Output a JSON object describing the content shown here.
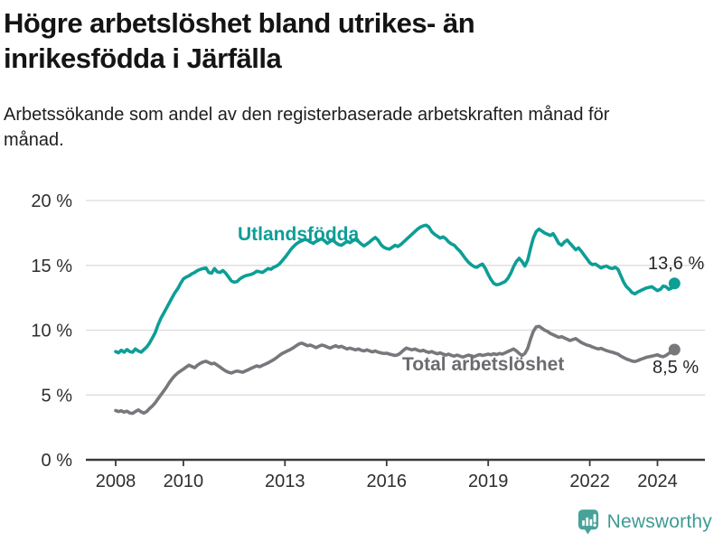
{
  "chart_data": {
    "type": "line",
    "title": "Högre arbetslöshet bland utrikes- än inrikesfödda i Järfälla",
    "subtitle": "Arbetssökande som andel av den registerbaserade arbetskraften månad för månad.",
    "unit": "%",
    "xlim": [
      2007.12,
      2025.4
    ],
    "ylim": [
      0,
      20
    ],
    "grid": "horizontal",
    "legend_position": "inline-labels",
    "x_ticks": [
      2008,
      2010,
      2013,
      2016,
      2019,
      2022,
      2024
    ],
    "x_tick_labels": [
      "2008",
      "2010",
      "2013",
      "2016",
      "2019",
      "2022",
      "2024"
    ],
    "y_ticks": [
      0,
      5,
      10,
      15,
      20
    ],
    "y_tick_labels": [
      "0 %",
      "5 %",
      "10 %",
      "15 %",
      "20 %"
    ],
    "series": [
      {
        "name": "Utlandsfödda",
        "color": "#0d9e96",
        "label_color": "#0d9e96",
        "end_label": "13,6 %",
        "last_value": 13.6,
        "start_year": 2008,
        "points_per_year": 12,
        "values": [
          8.35,
          8.25,
          8.45,
          8.3,
          8.5,
          8.35,
          8.3,
          8.55,
          8.4,
          8.3,
          8.5,
          8.7,
          9.0,
          9.4,
          9.8,
          10.4,
          10.9,
          11.3,
          11.7,
          12.1,
          12.5,
          12.9,
          13.2,
          13.6,
          13.95,
          14.1,
          14.2,
          14.35,
          14.45,
          14.6,
          14.7,
          14.75,
          14.8,
          14.45,
          14.4,
          14.75,
          14.5,
          14.45,
          14.6,
          14.4,
          14.1,
          13.8,
          13.7,
          13.75,
          13.95,
          14.1,
          14.2,
          14.25,
          14.3,
          14.4,
          14.55,
          14.5,
          14.45,
          14.6,
          14.75,
          14.7,
          14.85,
          14.95,
          15.1,
          15.35,
          15.6,
          15.9,
          16.2,
          16.45,
          16.65,
          16.8,
          16.9,
          17.0,
          16.95,
          16.8,
          16.7,
          16.85,
          16.95,
          17.05,
          16.9,
          16.7,
          16.85,
          16.95,
          16.75,
          16.6,
          16.55,
          16.7,
          16.85,
          16.75,
          16.9,
          17.0,
          16.85,
          16.65,
          16.5,
          16.65,
          16.8,
          17.0,
          17.15,
          16.95,
          16.6,
          16.4,
          16.3,
          16.25,
          16.4,
          16.55,
          16.45,
          16.6,
          16.8,
          17.0,
          17.2,
          17.4,
          17.6,
          17.8,
          17.95,
          18.05,
          18.1,
          17.95,
          17.6,
          17.4,
          17.25,
          17.1,
          17.2,
          17.05,
          16.8,
          16.65,
          16.55,
          16.3,
          16.1,
          15.8,
          15.5,
          15.25,
          15.05,
          14.9,
          14.85,
          15.0,
          15.1,
          14.75,
          14.3,
          13.9,
          13.6,
          13.5,
          13.55,
          13.65,
          13.75,
          14.0,
          14.4,
          14.9,
          15.3,
          15.55,
          15.3,
          14.95,
          15.4,
          16.3,
          17.1,
          17.6,
          17.8,
          17.65,
          17.5,
          17.4,
          17.3,
          17.45,
          17.1,
          16.7,
          16.55,
          16.8,
          16.95,
          16.7,
          16.45,
          16.2,
          16.35,
          16.1,
          15.8,
          15.5,
          15.2,
          15.05,
          15.1,
          14.95,
          14.8,
          14.9,
          14.95,
          14.8,
          14.75,
          14.85,
          14.7,
          14.2,
          13.7,
          13.35,
          13.15,
          12.9,
          12.8,
          12.95,
          13.05,
          13.15,
          13.25,
          13.3,
          13.35,
          13.2,
          13.05,
          13.15,
          13.4,
          13.35,
          13.15,
          13.25,
          13.6
        ]
      },
      {
        "name": "Total arbetslöshet",
        "color": "#77777c",
        "label_color": "#6b6b70",
        "end_label": "8,5 %",
        "last_value": 8.5,
        "start_year": 2008,
        "points_per_year": 12,
        "values": [
          3.8,
          3.72,
          3.78,
          3.68,
          3.75,
          3.62,
          3.58,
          3.72,
          3.85,
          3.7,
          3.6,
          3.72,
          3.95,
          4.15,
          4.4,
          4.7,
          5.0,
          5.3,
          5.6,
          5.95,
          6.25,
          6.5,
          6.7,
          6.85,
          7.0,
          7.15,
          7.3,
          7.2,
          7.1,
          7.3,
          7.45,
          7.55,
          7.6,
          7.5,
          7.4,
          7.45,
          7.3,
          7.15,
          7.0,
          6.85,
          6.75,
          6.7,
          6.78,
          6.85,
          6.8,
          6.75,
          6.85,
          6.95,
          7.05,
          7.15,
          7.25,
          7.18,
          7.28,
          7.38,
          7.48,
          7.6,
          7.72,
          7.88,
          8.05,
          8.2,
          8.3,
          8.42,
          8.52,
          8.65,
          8.8,
          8.95,
          9.0,
          8.9,
          8.8,
          8.85,
          8.75,
          8.65,
          8.75,
          8.85,
          8.8,
          8.7,
          8.62,
          8.72,
          8.8,
          8.7,
          8.75,
          8.65,
          8.55,
          8.62,
          8.55,
          8.48,
          8.55,
          8.45,
          8.4,
          8.48,
          8.4,
          8.32,
          8.4,
          8.3,
          8.25,
          8.2,
          8.22,
          8.15,
          8.1,
          8.05,
          8.1,
          8.25,
          8.45,
          8.62,
          8.55,
          8.48,
          8.55,
          8.45,
          8.38,
          8.45,
          8.35,
          8.28,
          8.35,
          8.25,
          8.18,
          8.25,
          8.15,
          8.08,
          8.15,
          8.05,
          8.0,
          8.08,
          8.0,
          7.92,
          8.0,
          8.08,
          8.02,
          7.95,
          8.05,
          8.12,
          8.05,
          8.1,
          8.15,
          8.1,
          8.18,
          8.12,
          8.2,
          8.15,
          8.25,
          8.35,
          8.45,
          8.55,
          8.4,
          8.2,
          8.05,
          8.2,
          8.6,
          9.3,
          9.9,
          10.25,
          10.3,
          10.15,
          10.0,
          9.9,
          9.75,
          9.65,
          9.55,
          9.45,
          9.5,
          9.4,
          9.3,
          9.2,
          9.28,
          9.35,
          9.2,
          9.05,
          8.95,
          8.85,
          8.8,
          8.7,
          8.62,
          8.55,
          8.6,
          8.5,
          8.42,
          8.35,
          8.3,
          8.22,
          8.15,
          8.0,
          7.88,
          7.78,
          7.7,
          7.62,
          7.58,
          7.65,
          7.75,
          7.82,
          7.9,
          7.95,
          8.0,
          8.05,
          8.1,
          8.0,
          7.95,
          8.05,
          8.2,
          8.35,
          8.5
        ]
      }
    ]
  },
  "footer": {
    "brand": "Newsworthy",
    "icon": "bar-chart-speech-bubble-icon"
  },
  "colors": {
    "accent_teal": "#0d9e96",
    "line_gray": "#77777c",
    "gridline": "#dcdcdc",
    "axis": "#3a3a3a",
    "tick_text": "#2e2e2e",
    "value_text": "#262626",
    "title_text": "#141414",
    "brand_teal": "#3d9b94",
    "icon_teal": "#48a29a"
  }
}
